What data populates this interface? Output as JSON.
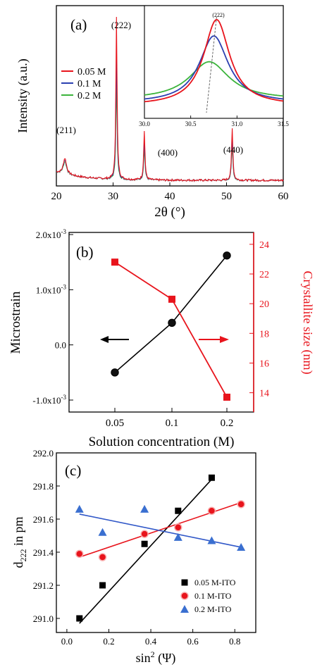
{
  "chart_data": [
    {
      "panel": "(a)",
      "type": "line",
      "xlabel": "2θ (°)",
      "ylabel": "Intensity (a.u.)",
      "xlim": [
        20,
        60
      ],
      "x_ticks": [
        20,
        30,
        40,
        50,
        60
      ],
      "legend_position": "left",
      "peak_labels": [
        {
          "text": "(211)",
          "x": 21.5
        },
        {
          "text": "(222)",
          "x": 30.6
        },
        {
          "text": "(400)",
          "x": 35.5
        },
        {
          "text": "(440)",
          "x": 51.0
        }
      ],
      "peaks_2theta": [
        21.5,
        30.6,
        35.5,
        51.0
      ],
      "series": [
        {
          "name": "0.05 M",
          "color": "#e8141c",
          "relative_heights": [
            0.1,
            1.0,
            0.3,
            0.32
          ]
        },
        {
          "name": "0.1 M",
          "color": "#2b3fb0",
          "relative_heights": [
            0.09,
            0.77,
            0.24,
            0.26
          ]
        },
        {
          "name": "0.2 M",
          "color": "#3cb43c",
          "relative_heights": [
            0.08,
            0.6,
            0.2,
            0.22
          ]
        }
      ],
      "inset": {
        "peak_label": "(222)",
        "xlim": [
          30.0,
          31.5
        ],
        "x_ticks": [
          "30.0",
          "30.5",
          "31.0",
          "31.5"
        ],
        "peak_centers": [
          30.78,
          30.75,
          30.7
        ],
        "peak_heights": [
          1.0,
          0.78,
          0.44
        ]
      }
    },
    {
      "panel": "(b)",
      "type": "line",
      "xlabel": "Solution concentration (M)",
      "x": [
        0.05,
        0.1,
        0.2
      ],
      "x_tick_labels": [
        "0.05",
        "0.1",
        "0.2"
      ],
      "left_axis": {
        "label": "Microstrain",
        "ylim": [
          -0.001,
          0.002
        ],
        "tick_values": [
          -0.001,
          0,
          0.001,
          0.002
        ],
        "tick_labels": [
          "-1.0x10",
          "0.0",
          "1.0x10",
          "2.0x10"
        ],
        "tick_exponents": [
          "-3",
          "",
          "-3",
          "-3"
        ],
        "values": [
          -0.0005,
          0.0004,
          0.00162
        ],
        "color": "#000000"
      },
      "right_axis": {
        "label": "Crystallite size (nm)",
        "ylim": [
          12.7,
          24.8
        ],
        "tick_values": [
          14,
          16,
          18,
          20,
          22,
          24
        ],
        "values": [
          22.8,
          20.3,
          13.7
        ],
        "color": "#e8141c"
      }
    },
    {
      "panel": "(c)",
      "type": "scatter",
      "xlabel": "sin",
      "xlabel_superscript": "2",
      "xlabel_suffix": " (Ψ)",
      "ylabel": "d",
      "ylabel_subscript": "222",
      "ylabel_suffix": " in pm",
      "xlim": [
        -0.05,
        0.9
      ],
      "ylim": [
        290.95,
        292.0
      ],
      "x_ticks": [
        0.0,
        0.2,
        0.4,
        0.6,
        0.8
      ],
      "x_tick_labels": [
        "0.0",
        "0.2",
        "0.4",
        "0.6",
        "0.8"
      ],
      "y_ticks": [
        291.0,
        291.2,
        291.4,
        291.6,
        291.8,
        292.0
      ],
      "y_tick_labels": [
        "291.0",
        "291.2",
        "291.4",
        "291.6",
        "291.8",
        "292.0"
      ],
      "legend_position": "bottom-right",
      "series": [
        {
          "name": "0.05 M-ITO",
          "color": "#000000",
          "marker": "square",
          "x": [
            0.06,
            0.17,
            0.37,
            0.53,
            0.69
          ],
          "y": [
            291.0,
            291.2,
            291.45,
            291.65,
            291.85
          ],
          "fit": [
            [
              0.06,
              290.97
            ],
            [
              0.69,
              291.84
            ]
          ]
        },
        {
          "name": "0.1 M-ITO",
          "color": "#e8141c",
          "marker": "circle",
          "x": [
            0.06,
            0.17,
            0.37,
            0.53,
            0.69,
            0.83
          ],
          "y": [
            291.39,
            291.37,
            291.51,
            291.55,
            291.65,
            291.69
          ],
          "fit": [
            [
              0.06,
              291.37
            ],
            [
              0.83,
              291.7
            ]
          ]
        },
        {
          "name": "0.2 M-ITO",
          "color": "#3158c8",
          "marker": "triangle",
          "x": [
            0.06,
            0.17,
            0.37,
            0.53,
            0.69,
            0.83
          ],
          "y": [
            291.66,
            291.52,
            291.66,
            291.49,
            291.47,
            291.43
          ],
          "fit": [
            [
              0.06,
              291.63
            ],
            [
              0.83,
              291.43
            ]
          ]
        }
      ]
    }
  ]
}
